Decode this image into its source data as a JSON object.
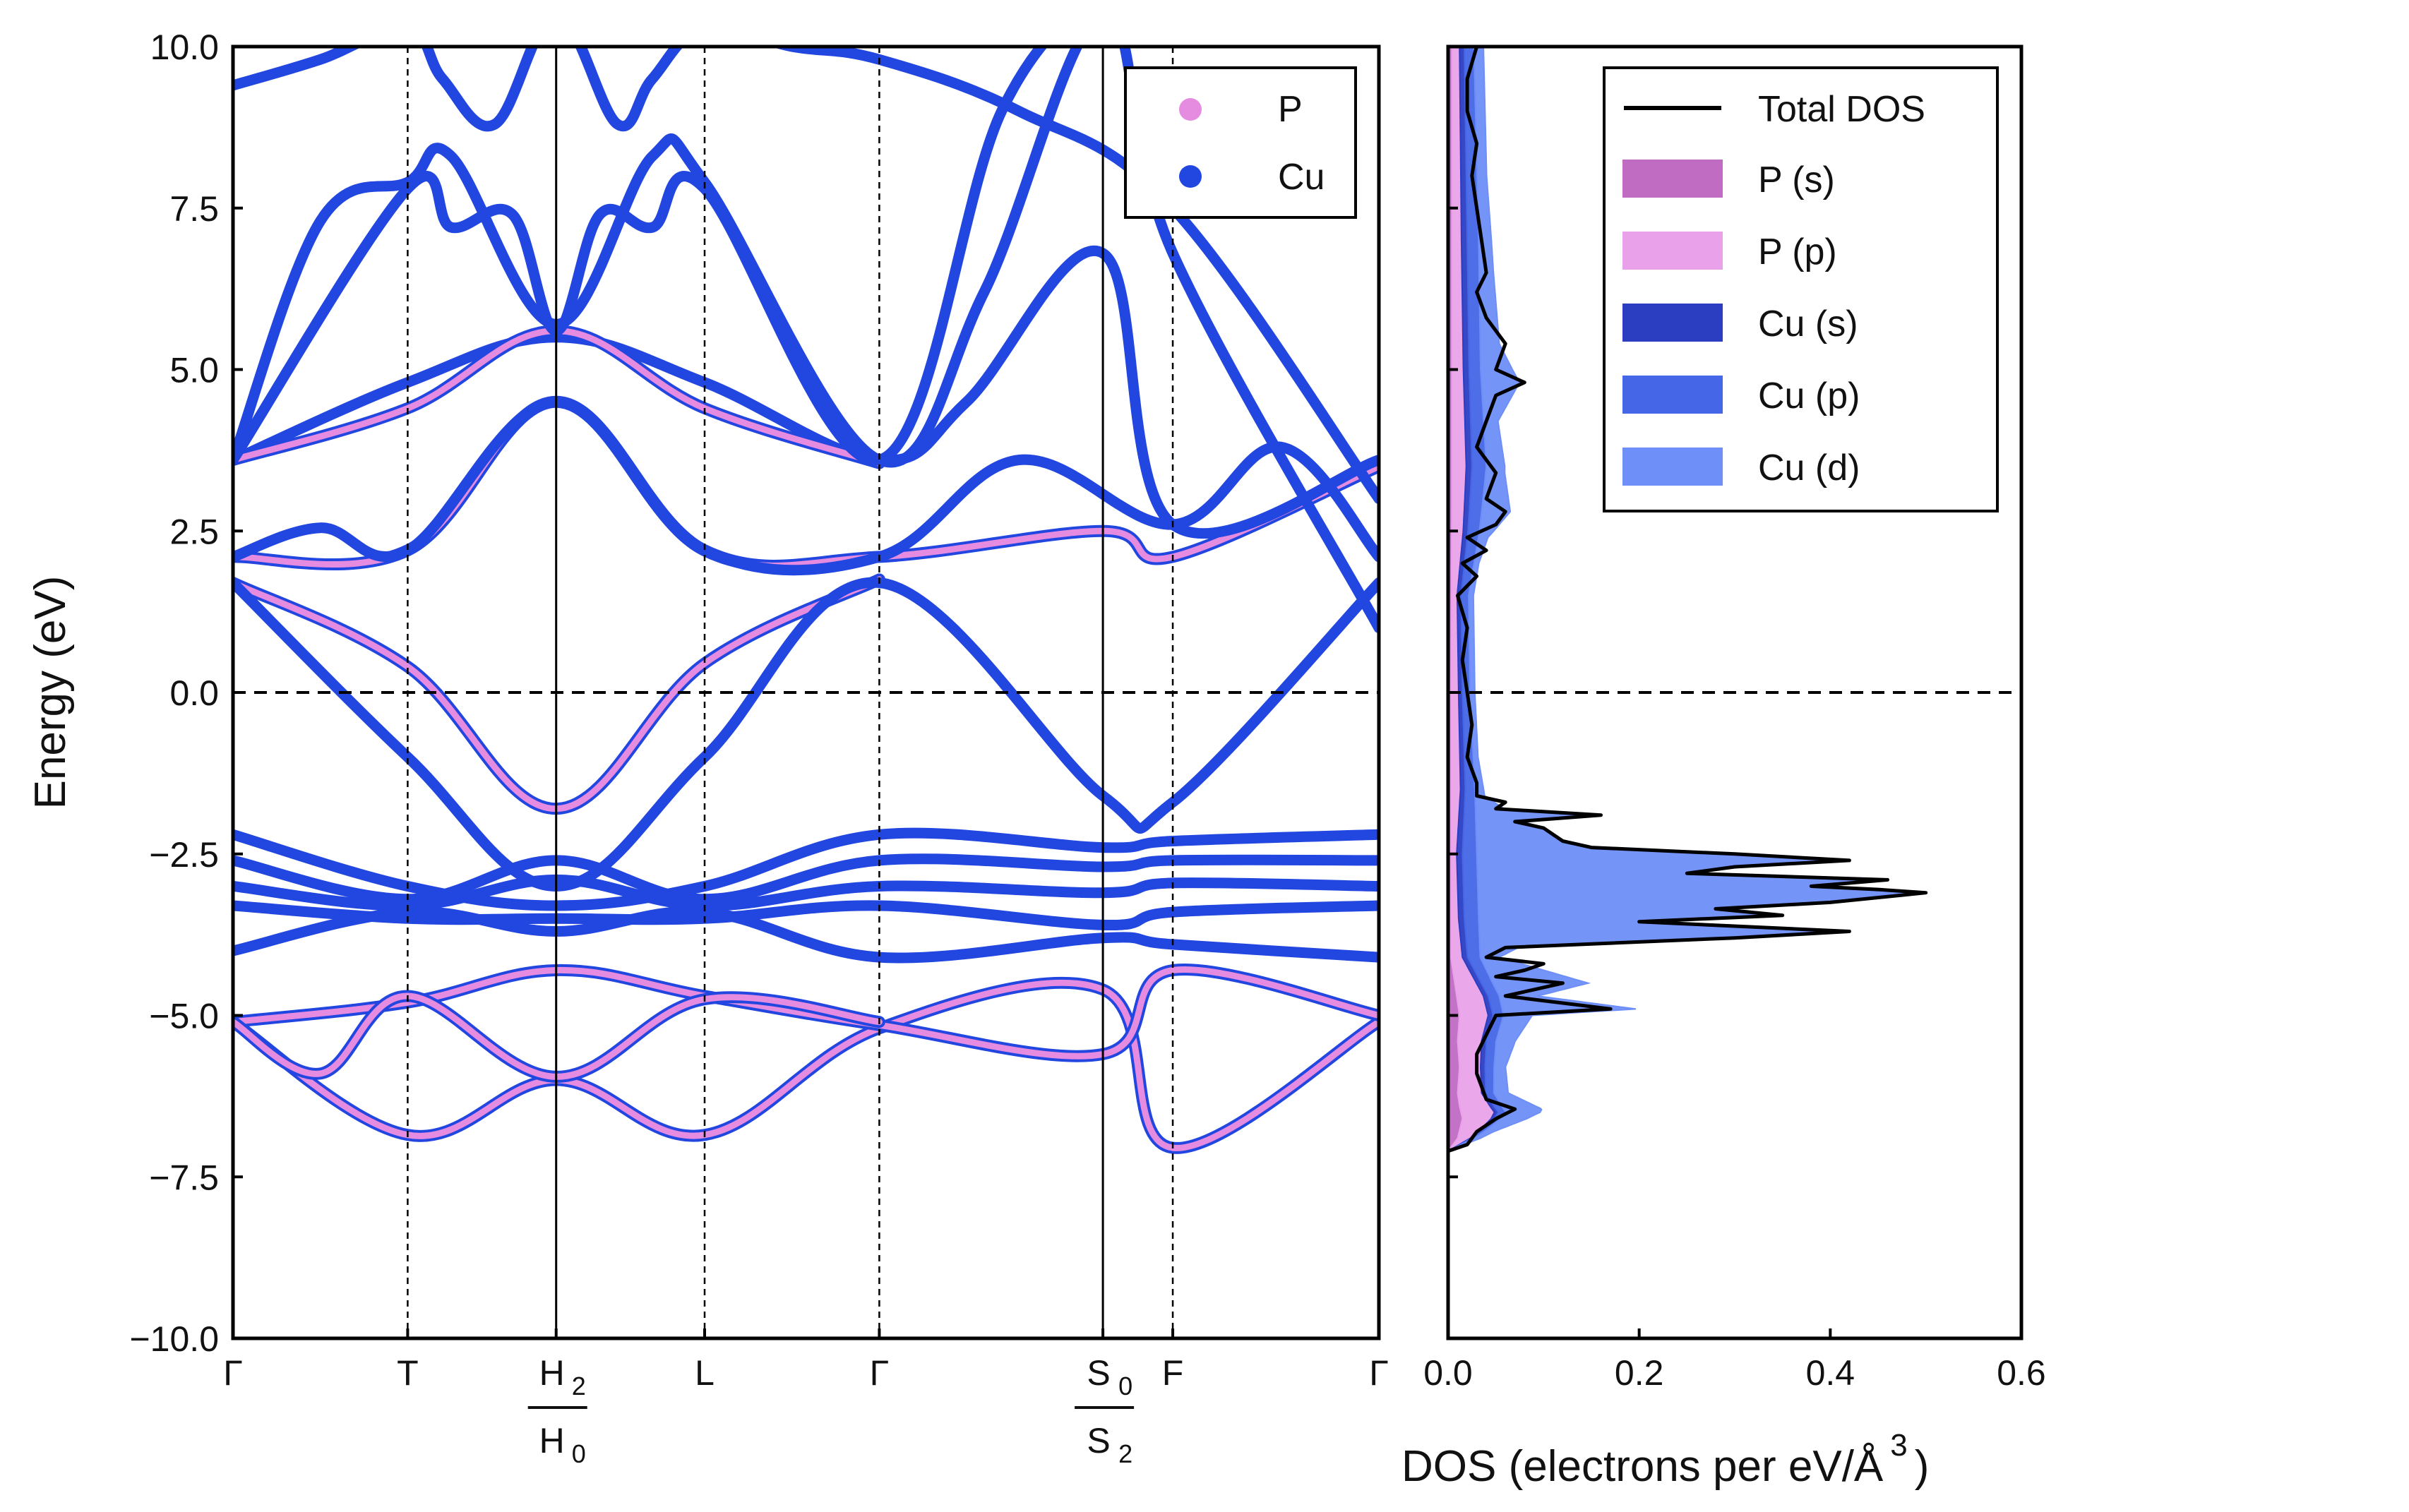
{
  "colors": {
    "P": "#e58be0",
    "Cu": "#2246e0",
    "P_s": "#c06cc2",
    "P_p": "#e9a2e9",
    "Cu_s": "#2b3ec2",
    "Cu_p": "#4566e6",
    "Cu_d": "#6e8ef8",
    "total": "#000000",
    "frame": "#000000"
  },
  "chart_data": [
    {
      "type": "line",
      "title": "",
      "ylabel": "Energy (eV)",
      "xlabel": "",
      "ylim": [
        -10,
        10
      ],
      "yticks": [
        -10.0,
        -7.5,
        -5.0,
        -2.5,
        0.0,
        2.5,
        5.0,
        7.5,
        10.0
      ],
      "ytick_labels": [
        "−10.0",
        "−7.5",
        "−5.0",
        "−2.5",
        "0.0",
        "2.5",
        "5.0",
        "7.5",
        "10.0"
      ],
      "fermi_level": 0.0,
      "kpath": [
        {
          "pos": 0.0,
          "label": "Γ",
          "line": "none"
        },
        {
          "pos": 1.0,
          "label": "T",
          "line": "dashed"
        },
        {
          "pos": 1.85,
          "top": "H",
          "top_sub": "2",
          "bottom": "H",
          "bottom_sub": "0",
          "line": "solid"
        },
        {
          "pos": 2.7,
          "label": "L",
          "line": "dashed"
        },
        {
          "pos": 3.7,
          "label": "Γ",
          "line": "dashed"
        },
        {
          "pos": 4.98,
          "top": "S",
          "top_sub": "0",
          "bottom": "S",
          "bottom_sub": "2",
          "line": "solid"
        },
        {
          "pos": 5.38,
          "label": "F",
          "line": "dashed"
        },
        {
          "pos": 6.56,
          "label": "Γ",
          "line": "none"
        }
      ],
      "legend": {
        "position": "upper-right",
        "entries": [
          {
            "name": "P",
            "marker": "dot"
          },
          {
            "name": "Cu",
            "marker": "dot"
          }
        ]
      },
      "bands": [
        {
          "name": "P",
          "k": [
            0,
            1.0,
            1.85,
            2.7,
            3.7,
            4.98,
            5.38,
            6.56
          ],
          "energy": [
            -5.1,
            -6.85,
            -6.0,
            -6.85,
            -5.2,
            -4.6,
            -7.05,
            -5.1
          ]
        },
        {
          "name": "P",
          "k": [
            0,
            1.0,
            1.85,
            2.7,
            3.7,
            4.98,
            5.38,
            6.56
          ],
          "energy": [
            -5.1,
            -4.8,
            -4.3,
            -4.7,
            -5.15,
            -5.6,
            -4.3,
            -5.0
          ]
        },
        {
          "name": "P",
          "k": [
            0,
            0.5,
            1.0,
            1.85,
            2.7,
            3.7
          ],
          "energy": [
            -5.1,
            -5.9,
            -4.7,
            -5.95,
            -4.75,
            -5.1
          ]
        },
        {
          "name": "P",
          "k": [
            0,
            1.0,
            1.85,
            2.7,
            3.7
          ],
          "energy": [
            1.7,
            0.4,
            -1.8,
            0.45,
            1.75
          ]
        },
        {
          "name": "Cu",
          "k": [
            0,
            1.0,
            1.85,
            2.7,
            3.7,
            4.98,
            5.38,
            6.56
          ],
          "energy": [
            1.7,
            -1.0,
            -3.0,
            -1.0,
            1.7,
            -1.6,
            -1.7,
            1.7
          ]
        },
        {
          "name": "P",
          "k": [
            0,
            1.0,
            1.85,
            2.7,
            3.7,
            4.98,
            5.38,
            6.56
          ],
          "energy": [
            2.1,
            2.2,
            4.5,
            2.2,
            2.1,
            2.5,
            2.1,
            3.5
          ]
        },
        {
          "name": "Cu",
          "k": [
            0,
            0.5,
            1.0,
            1.85,
            2.7,
            3.7,
            4.5,
            5.38,
            6.0,
            6.56
          ],
          "energy": [
            2.1,
            2.55,
            2.2,
            4.5,
            2.2,
            2.1,
            3.6,
            2.6,
            3.8,
            2.1
          ]
        },
        {
          "name": "Cu",
          "k": [
            0,
            1.0,
            1.85,
            2.7,
            3.7,
            4.98,
            5.38,
            6.56
          ],
          "energy": [
            -2.2,
            -3.0,
            -3.3,
            -3.0,
            -2.2,
            -2.4,
            -2.3,
            -2.2
          ]
        },
        {
          "name": "Cu",
          "k": [
            0,
            1.0,
            1.85,
            2.7,
            3.7,
            4.98,
            5.38,
            6.56
          ],
          "energy": [
            -2.6,
            -3.2,
            -2.6,
            -3.2,
            -2.6,
            -2.7,
            -2.6,
            -2.6
          ]
        },
        {
          "name": "Cu",
          "k": [
            0,
            1.0,
            1.85,
            2.7,
            3.7,
            4.98,
            5.38,
            6.56
          ],
          "energy": [
            -3.0,
            -3.3,
            -2.9,
            -3.3,
            -3.0,
            -3.1,
            -2.95,
            -3.0
          ]
        },
        {
          "name": "Cu",
          "k": [
            0,
            1.0,
            1.85,
            2.7,
            3.7,
            4.98,
            5.38,
            6.56
          ],
          "energy": [
            -4.0,
            -3.4,
            -3.7,
            -3.4,
            -4.1,
            -3.8,
            -3.9,
            -4.1
          ]
        },
        {
          "name": "Cu",
          "k": [
            0,
            1.0,
            1.85,
            2.7,
            3.7,
            4.98,
            5.38,
            6.56
          ],
          "energy": [
            -3.3,
            -3.5,
            -3.5,
            -3.5,
            -3.3,
            -3.6,
            -3.4,
            -3.3
          ]
        },
        {
          "name": "Cu",
          "k": [
            0,
            1.0,
            1.85,
            2.7,
            3.7,
            4.2,
            4.98,
            5.38,
            6.56
          ],
          "energy": [
            3.6,
            4.8,
            5.5,
            4.8,
            3.6,
            4.5,
            6.8,
            2.6,
            3.6
          ]
        },
        {
          "name": "P",
          "k": [
            0,
            1.0,
            1.85,
            2.7,
            3.7
          ],
          "energy": [
            3.6,
            4.4,
            5.6,
            4.4,
            3.55
          ]
        },
        {
          "name": "Cu",
          "k": [
            0,
            0.5,
            1.0,
            1.25,
            1.85,
            2.4,
            2.7,
            3.7,
            4.3,
            4.98,
            5.38,
            6.56
          ],
          "energy": [
            3.6,
            7.3,
            7.9,
            8.3,
            5.7,
            8.3,
            7.9,
            3.6,
            6.2,
            10.5,
            6.8,
            1.0
          ]
        },
        {
          "name": "Cu",
          "k": [
            0,
            1.0,
            1.25,
            1.6,
            1.85,
            2.1,
            2.4,
            2.7,
            3.7,
            4.4,
            5.0
          ],
          "energy": [
            3.6,
            7.8,
            7.2,
            7.4,
            5.6,
            7.4,
            7.2,
            7.8,
            3.6,
            9.0,
            11.0
          ]
        },
        {
          "name": "Cu",
          "k": [
            0,
            0.5,
            1.0,
            1.2,
            1.5,
            1.85,
            2.2,
            2.4,
            2.7,
            3.2,
            3.7,
            4.5,
            5.38,
            6.56
          ],
          "energy": [
            9.4,
            9.8,
            10.3,
            9.5,
            8.8,
            10.5,
            8.8,
            9.5,
            10.3,
            10.0,
            9.8,
            9.0,
            7.5,
            3.0
          ]
        }
      ]
    },
    {
      "type": "area",
      "xlabel": "DOS (electrons per eV/Å",
      "xlabel_sup": "3",
      "xlabel_tail": ")",
      "xlim": [
        0.0,
        0.6
      ],
      "xticks": [
        0.0,
        0.2,
        0.4,
        0.6
      ],
      "xtick_labels": [
        "0.0",
        "0.2",
        "0.4",
        "0.6"
      ],
      "ylim": [
        -10,
        10
      ],
      "legend": {
        "position": "upper-right"
      },
      "series": [
        {
          "name": "Total DOS",
          "style": "line",
          "energy": [
            -7.1,
            -7.0,
            -6.8,
            -6.6,
            -6.45,
            -6.3,
            -6.1,
            -5.9,
            -5.6,
            -5.3,
            -5.0,
            -4.9,
            -4.7,
            -4.6,
            -4.5,
            -4.4,
            -4.3,
            -4.2,
            -4.1,
            -3.95,
            -3.8,
            -3.7,
            -3.55,
            -3.45,
            -3.35,
            -3.25,
            -3.1,
            -3.05,
            -3.0,
            -2.9,
            -2.8,
            -2.7,
            -2.6,
            -2.5,
            -2.4,
            -2.3,
            -2.1,
            -2.0,
            -1.9,
            -1.8,
            -1.7,
            -1.6,
            -1.4,
            -1.0,
            -0.5,
            0.0,
            0.5,
            1.0,
            1.5,
            1.8,
            2.0,
            2.2,
            2.4,
            2.6,
            2.8,
            3.0,
            3.4,
            3.8,
            4.2,
            4.6,
            4.8,
            5.0,
            5.4,
            5.8,
            6.2,
            6.5,
            7.0,
            7.5,
            8.0,
            8.5,
            9.0,
            9.5,
            10.0
          ],
          "values": [
            0.0,
            0.02,
            0.03,
            0.05,
            0.07,
            0.04,
            0.035,
            0.03,
            0.03,
            0.04,
            0.05,
            0.17,
            0.06,
            0.09,
            0.12,
            0.05,
            0.08,
            0.1,
            0.04,
            0.06,
            0.3,
            0.42,
            0.2,
            0.35,
            0.28,
            0.4,
            0.5,
            0.45,
            0.38,
            0.46,
            0.25,
            0.3,
            0.42,
            0.3,
            0.15,
            0.12,
            0.1,
            0.07,
            0.16,
            0.05,
            0.06,
            0.03,
            0.03,
            0.02,
            0.025,
            0.02,
            0.015,
            0.02,
            0.01,
            0.03,
            0.015,
            0.04,
            0.02,
            0.05,
            0.06,
            0.04,
            0.05,
            0.03,
            0.04,
            0.05,
            0.08,
            0.05,
            0.06,
            0.04,
            0.03,
            0.04,
            0.035,
            0.03,
            0.025,
            0.03,
            0.02,
            0.02,
            0.03
          ]
        },
        {
          "name": "P (s)",
          "style": "fill",
          "energy": [
            -7.1,
            -6.9,
            -6.6,
            -6.4,
            -6.2,
            -5.8,
            -5.4,
            -5.0,
            -4.6,
            -4.3,
            -4.1,
            -3.0,
            0.0,
            3.0,
            6.0,
            10.0
          ],
          "values": [
            0.0,
            0.01,
            0.015,
            0.012,
            0.01,
            0.012,
            0.01,
            0.012,
            0.008,
            0.005,
            0.003,
            0.003,
            0.003,
            0.004,
            0.004,
            0.004
          ]
        },
        {
          "name": "P (p)",
          "style": "fill",
          "energy": [
            -7.1,
            -6.8,
            -6.5,
            -6.2,
            -5.8,
            -5.4,
            -5.0,
            -4.7,
            -4.4,
            -4.1,
            -3.5,
            -2.5,
            -1.5,
            0.0,
            1.5,
            2.5,
            3.5,
            5.0,
            7.0,
            10.0
          ],
          "values": [
            0.0,
            0.02,
            0.035,
            0.025,
            0.022,
            0.025,
            0.03,
            0.028,
            0.02,
            0.012,
            0.008,
            0.006,
            0.01,
            0.008,
            0.006,
            0.012,
            0.015,
            0.012,
            0.01,
            0.008
          ]
        },
        {
          "name": "Cu (s)",
          "style": "fill",
          "energy": [
            -7.1,
            -6.5,
            -5.5,
            -4.5,
            -3.5,
            -2.5,
            -1.5,
            0.0,
            1.5,
            2.5,
            3.5,
            5.0,
            7.0,
            10.0
          ],
          "values": [
            0.0,
            0.004,
            0.005,
            0.005,
            0.006,
            0.006,
            0.005,
            0.004,
            0.004,
            0.005,
            0.006,
            0.006,
            0.006,
            0.005
          ]
        },
        {
          "name": "Cu (p)",
          "style": "fill",
          "energy": [
            -7.1,
            -6.5,
            -5.5,
            -4.5,
            -3.5,
            -2.5,
            -1.5,
            0.0,
            1.5,
            2.5,
            3.5,
            5.0,
            7.0,
            10.0
          ],
          "values": [
            0.0,
            0.008,
            0.01,
            0.012,
            0.015,
            0.015,
            0.01,
            0.008,
            0.008,
            0.012,
            0.015,
            0.012,
            0.012,
            0.01
          ]
        },
        {
          "name": "Cu (d)",
          "style": "fill",
          "energy": [
            -7.1,
            -6.8,
            -6.45,
            -6.2,
            -5.8,
            -5.4,
            -5.0,
            -4.9,
            -4.7,
            -4.5,
            -4.3,
            -4.1,
            -3.95,
            -3.8,
            -3.7,
            -3.55,
            -3.45,
            -3.35,
            -3.25,
            -3.1,
            -3.0,
            -2.9,
            -2.8,
            -2.7,
            -2.6,
            -2.5,
            -2.4,
            -2.3,
            -2.1,
            -2.0,
            -1.9,
            -1.8,
            -1.6,
            -1.0,
            0.0,
            1.0,
            2.0,
            2.4,
            2.8,
            3.4,
            4.2,
            4.8,
            5.4,
            6.5,
            8.0,
            10.0
          ],
          "values": [
            0.0,
            0.01,
            0.04,
            0.015,
            0.012,
            0.02,
            0.03,
            0.14,
            0.04,
            0.1,
            0.06,
            0.02,
            0.04,
            0.28,
            0.38,
            0.18,
            0.32,
            0.25,
            0.36,
            0.45,
            0.35,
            0.42,
            0.22,
            0.27,
            0.38,
            0.26,
            0.12,
            0.09,
            0.07,
            0.05,
            0.12,
            0.03,
            0.01,
            0.005,
            0.005,
            0.005,
            0.005,
            0.01,
            0.03,
            0.02,
            0.015,
            0.04,
            0.02,
            0.015,
            0.01,
            0.01
          ]
        }
      ]
    }
  ]
}
